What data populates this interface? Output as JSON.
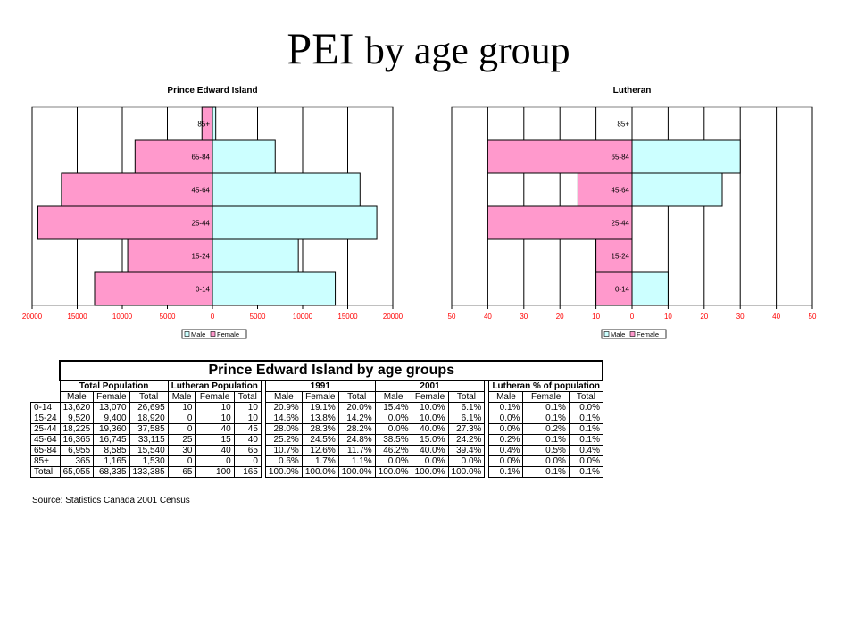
{
  "slide": {
    "title_main": "PEI ",
    "title_rest": "by age group"
  },
  "chart_data": [
    {
      "type": "bar",
      "title": "Prince Edward Island",
      "categories": [
        "0-14",
        "15-24",
        "25-44",
        "45-64",
        "65-84",
        "85+"
      ],
      "series": [
        {
          "name": "Male",
          "values": [
            13620,
            9520,
            18225,
            16365,
            6955,
            365
          ],
          "color": "#ccffff"
        },
        {
          "name": "Female",
          "values": [
            13070,
            9400,
            19360,
            16745,
            8585,
            1165
          ],
          "color": "#ff99cc"
        }
      ],
      "xlim": [
        -20000,
        20000
      ],
      "ticks": [
        "20000",
        "15000",
        "10000",
        "5000",
        "0",
        "5000",
        "10000",
        "15000",
        "20000"
      ],
      "legend": [
        "Male",
        "Female"
      ],
      "legend_position": "bottom-center",
      "grid": true
    },
    {
      "type": "bar",
      "title": "Lutheran",
      "categories": [
        "0-14",
        "15-24",
        "25-44",
        "45-64",
        "65-84",
        "85+"
      ],
      "series": [
        {
          "name": "Male",
          "values": [
            10,
            0,
            0,
            25,
            30,
            0
          ],
          "color": "#ccffff"
        },
        {
          "name": "Female",
          "values": [
            10,
            10,
            40,
            15,
            40,
            0
          ],
          "color": "#ff99cc"
        }
      ],
      "xlim": [
        -50,
        50
      ],
      "ticks": [
        "50",
        "40",
        "30",
        "20",
        "10",
        "0",
        "10",
        "20",
        "30",
        "40",
        "50"
      ],
      "legend": [
        "Male",
        "Female"
      ],
      "legend_position": "bottom-center",
      "grid": true
    }
  ],
  "table": {
    "title": "Prince Edward Island by age groups",
    "groups": [
      "Total Population",
      "Lutheran Population",
      "1991",
      "2001",
      "Lutheran % of population"
    ],
    "subheaders": [
      "Male",
      "Female",
      "Total"
    ],
    "rows": [
      {
        "label": "0-14",
        "tp": [
          "13,620",
          "13,070",
          "26,695"
        ],
        "lp": [
          "10",
          "10",
          "10"
        ],
        "y1991": [
          "20.9%",
          "19.1%",
          "20.0%"
        ],
        "y2001": [
          "15.4%",
          "10.0%",
          "6.1%"
        ],
        "pct": [
          "0.1%",
          "0.1%",
          "0.0%"
        ]
      },
      {
        "label": "15-24",
        "tp": [
          "9,520",
          "9,400",
          "18,920"
        ],
        "lp": [
          "0",
          "10",
          "10"
        ],
        "y1991": [
          "14.6%",
          "13.8%",
          "14.2%"
        ],
        "y2001": [
          "0.0%",
          "10.0%",
          "6.1%"
        ],
        "pct": [
          "0.0%",
          "0.1%",
          "0.1%"
        ]
      },
      {
        "label": "25-44",
        "tp": [
          "18,225",
          "19,360",
          "37,585"
        ],
        "lp": [
          "0",
          "40",
          "45"
        ],
        "y1991": [
          "28.0%",
          "28.3%",
          "28.2%"
        ],
        "y2001": [
          "0.0%",
          "40.0%",
          "27.3%"
        ],
        "pct": [
          "0.0%",
          "0.2%",
          "0.1%"
        ]
      },
      {
        "label": "45-64",
        "tp": [
          "16,365",
          "16,745",
          "33,115"
        ],
        "lp": [
          "25",
          "15",
          "40"
        ],
        "y1991": [
          "25.2%",
          "24.5%",
          "24.8%"
        ],
        "y2001": [
          "38.5%",
          "15.0%",
          "24.2%"
        ],
        "pct": [
          "0.2%",
          "0.1%",
          "0.1%"
        ]
      },
      {
        "label": "65-84",
        "tp": [
          "6,955",
          "8,585",
          "15,540"
        ],
        "lp": [
          "30",
          "40",
          "65"
        ],
        "y1991": [
          "10.7%",
          "12.6%",
          "11.7%"
        ],
        "y2001": [
          "46.2%",
          "40.0%",
          "39.4%"
        ],
        "pct": [
          "0.4%",
          "0.5%",
          "0.4%"
        ]
      },
      {
        "label": "85+",
        "tp": [
          "365",
          "1,165",
          "1,530"
        ],
        "lp": [
          "0",
          "0",
          "0"
        ],
        "y1991": [
          "0.6%",
          "1.7%",
          "1.1%"
        ],
        "y2001": [
          "0.0%",
          "0.0%",
          "0.0%"
        ],
        "pct": [
          "0.0%",
          "0.0%",
          "0.0%"
        ]
      },
      {
        "label": "Total",
        "tp": [
          "65,055",
          "68,335",
          "133,385"
        ],
        "lp": [
          "65",
          "100",
          "165"
        ],
        "y1991": [
          "100.0%",
          "100.0%",
          "100.0%"
        ],
        "y2001": [
          "100.0%",
          "100.0%",
          "100.0%"
        ],
        "pct": [
          "0.1%",
          "0.1%",
          "0.1%"
        ]
      }
    ],
    "source": "Source: Statistics Canada 2001 Census"
  }
}
